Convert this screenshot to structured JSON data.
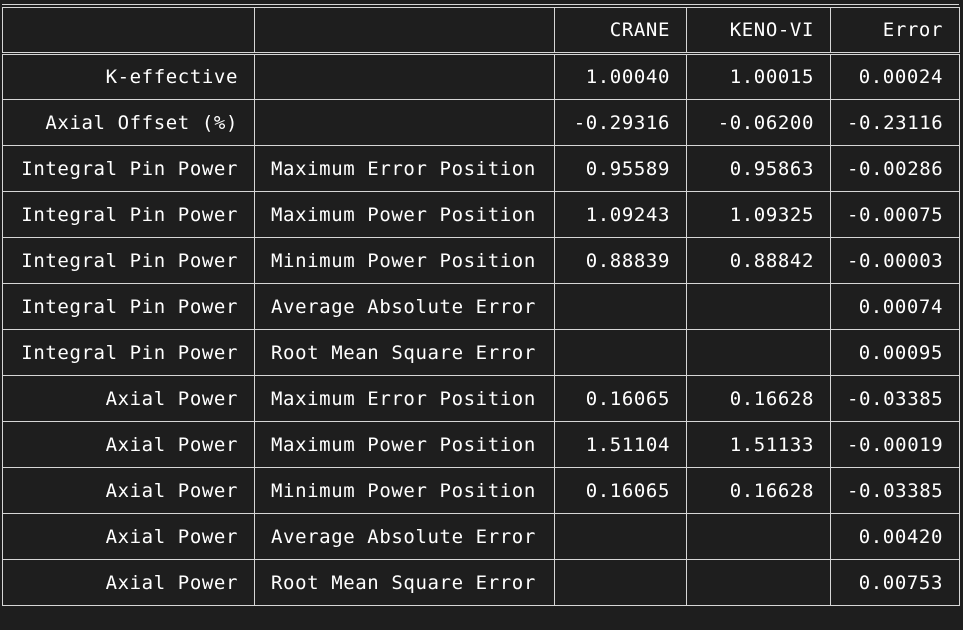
{
  "table": {
    "headers": [
      "",
      "",
      "CRANE",
      "KENO-VI",
      "Error"
    ],
    "rows": [
      [
        "K-effective",
        "",
        "1.00040",
        "1.00015",
        "0.00024"
      ],
      [
        "Axial Offset (%)",
        "",
        "-0.29316",
        "-0.06200",
        "-0.23116"
      ],
      [
        "Integral Pin Power",
        "Maximum Error Position",
        "0.95589",
        "0.95863",
        "-0.00286"
      ],
      [
        "Integral Pin Power",
        "Maximum Power Position",
        "1.09243",
        "1.09325",
        "-0.00075"
      ],
      [
        "Integral Pin Power",
        "Minimum Power Position",
        "0.88839",
        "0.88842",
        "-0.00003"
      ],
      [
        "Integral Pin Power",
        "Average Absolute Error",
        "",
        "",
        "0.00074"
      ],
      [
        "Integral Pin Power",
        "Root Mean Square Error",
        "",
        "",
        "0.00095"
      ],
      [
        "Axial Power",
        "Maximum Error Position",
        "0.16065",
        "0.16628",
        "-0.03385"
      ],
      [
        "Axial Power",
        "Maximum Power Position",
        "1.51104",
        "1.51133",
        "-0.00019"
      ],
      [
        "Axial Power",
        "Minimum Power Position",
        "0.16065",
        "0.16628",
        "-0.03385"
      ],
      [
        "Axial Power",
        "Average Absolute Error",
        "",
        "",
        "0.00420"
      ],
      [
        "Axial Power",
        "Root Mean Square Error",
        "",
        "",
        "0.00753"
      ]
    ]
  }
}
